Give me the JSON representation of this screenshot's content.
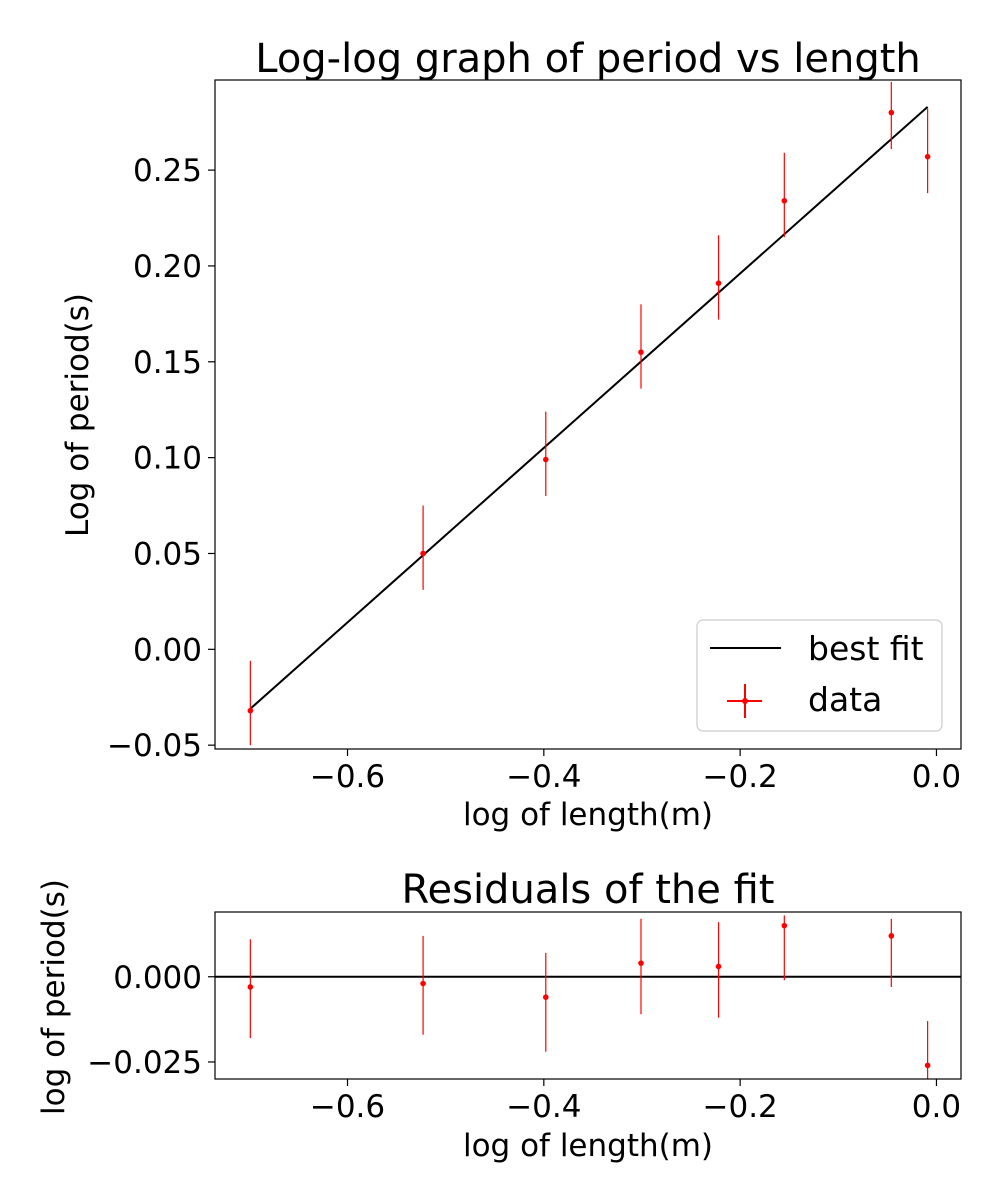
{
  "chart_data": [
    {
      "type": "scatter",
      "title": "Log-log graph of period vs length",
      "xlabel": "log of length(m)",
      "ylabel": "Log of period(s)",
      "xlim": [
        -0.735,
        0.025
      ],
      "ylim": [
        -0.052,
        0.297
      ],
      "xticks": [
        -0.6,
        -0.4,
        -0.2,
        0.0
      ],
      "xtick_labels": [
        "−0.6",
        "−0.4",
        "−0.2",
        "0.0"
      ],
      "yticks": [
        -0.05,
        0.0,
        0.05,
        0.1,
        0.15,
        0.2,
        0.25
      ],
      "ytick_labels": [
        "−0.05",
        "0.00",
        "0.05",
        "0.10",
        "0.15",
        "0.20",
        "0.25"
      ],
      "grid": false,
      "legend_position": "lower-right",
      "series": [
        {
          "name": "best fit",
          "kind": "line",
          "color": "#000000",
          "x": [
            -0.699,
            -0.009
          ],
          "y": [
            -0.031,
            0.283
          ]
        },
        {
          "name": "data",
          "kind": "errorbar",
          "color": "#ff0000",
          "points": [
            {
              "x": -0.699,
              "y": -0.032,
              "yerr_low": 0.018,
              "yerr_high": 0.026
            },
            {
              "x": -0.523,
              "y": 0.05,
              "yerr_low": 0.019,
              "yerr_high": 0.025
            },
            {
              "x": -0.398,
              "y": 0.099,
              "yerr_low": 0.019,
              "yerr_high": 0.025
            },
            {
              "x": -0.301,
              "y": 0.155,
              "yerr_low": 0.019,
              "yerr_high": 0.025
            },
            {
              "x": -0.222,
              "y": 0.191,
              "yerr_low": 0.019,
              "yerr_high": 0.025
            },
            {
              "x": -0.155,
              "y": 0.234,
              "yerr_low": 0.019,
              "yerr_high": 0.025
            },
            {
              "x": -0.046,
              "y": 0.28,
              "yerr_low": 0.019,
              "yerr_high": 0.016
            },
            {
              "x": -0.009,
              "y": 0.257,
              "yerr_low": 0.019,
              "yerr_high": 0.025
            }
          ]
        }
      ]
    },
    {
      "type": "scatter",
      "title": "Residuals of the fit",
      "xlabel": "log of length(m)",
      "ylabel": "log of period(s)",
      "xlim": [
        -0.735,
        0.025
      ],
      "ylim": [
        -0.03,
        0.019
      ],
      "xticks": [
        -0.6,
        -0.4,
        -0.2,
        0.0
      ],
      "xtick_labels": [
        "−0.6",
        "−0.4",
        "−0.2",
        "0.0"
      ],
      "yticks": [
        -0.025,
        0.0
      ],
      "ytick_labels": [
        "−0.025",
        "0.000"
      ],
      "grid": false,
      "zero_line": {
        "y": 0.0,
        "color": "#000000"
      },
      "series": [
        {
          "kind": "errorbar",
          "color": "#ff0000",
          "points": [
            {
              "x": -0.699,
              "y": -0.003,
              "yerr_low": 0.015,
              "yerr_high": 0.014
            },
            {
              "x": -0.523,
              "y": -0.002,
              "yerr_low": 0.015,
              "yerr_high": 0.014
            },
            {
              "x": -0.398,
              "y": -0.006,
              "yerr_low": 0.016,
              "yerr_high": 0.013
            },
            {
              "x": -0.301,
              "y": 0.004,
              "yerr_low": 0.015,
              "yerr_high": 0.013
            },
            {
              "x": -0.222,
              "y": 0.003,
              "yerr_low": 0.015,
              "yerr_high": 0.013
            },
            {
              "x": -0.155,
              "y": 0.015,
              "yerr_low": 0.016,
              "yerr_high": 0.003
            },
            {
              "x": -0.046,
              "y": 0.012,
              "yerr_low": 0.015,
              "yerr_high": 0.005
            },
            {
              "x": -0.009,
              "y": -0.026,
              "yerr_low": 0.004,
              "yerr_high": 0.013
            }
          ]
        }
      ]
    }
  ]
}
